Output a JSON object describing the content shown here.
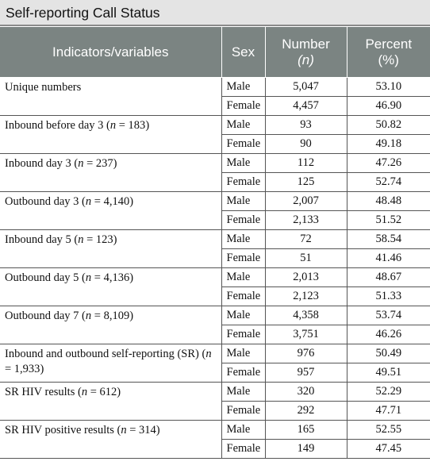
{
  "title": "Self-reporting Call Status",
  "headers": {
    "indicators": "Indicators/variables",
    "sex": "Sex",
    "number_line1": "Number",
    "number_line2": "(n)",
    "percent_line1": "Percent",
    "percent_line2": "(%)"
  },
  "groups": [
    {
      "label_pre": "Unique numbers",
      "n_var": "",
      "n_eq": "",
      "n_post": "",
      "rows": [
        {
          "sex": "Male",
          "number": "5,047",
          "percent": "53.10"
        },
        {
          "sex": "Female",
          "number": "4,457",
          "percent": "46.90"
        }
      ]
    },
    {
      "label_pre": "Inbound before day 3 (",
      "n_var": "n",
      "n_eq": " = 183",
      "n_post": ")",
      "rows": [
        {
          "sex": "Male",
          "number": "93",
          "percent": "50.82"
        },
        {
          "sex": "Female",
          "number": "90",
          "percent": "49.18"
        }
      ]
    },
    {
      "label_pre": "Inbound day 3 (",
      "n_var": "n",
      "n_eq": " = 237",
      "n_post": ")",
      "rows": [
        {
          "sex": "Male",
          "number": "112",
          "percent": "47.26"
        },
        {
          "sex": "Female",
          "number": "125",
          "percent": "52.74"
        }
      ]
    },
    {
      "label_pre": "Outbound day 3 (",
      "n_var": "n",
      "n_eq": " = 4,140",
      "n_post": ")",
      "rows": [
        {
          "sex": "Male",
          "number": "2,007",
          "percent": "48.48"
        },
        {
          "sex": "Female",
          "number": "2,133",
          "percent": "51.52"
        }
      ]
    },
    {
      "label_pre": "Inbound day 5 (",
      "n_var": "n",
      "n_eq": " = 123",
      "n_post": ")",
      "rows": [
        {
          "sex": "Male",
          "number": "72",
          "percent": "58.54"
        },
        {
          "sex": "Female",
          "number": "51",
          "percent": "41.46"
        }
      ]
    },
    {
      "label_pre": "Outbound day 5 (",
      "n_var": "n",
      "n_eq": " = 4,136",
      "n_post": ")",
      "rows": [
        {
          "sex": "Male",
          "number": "2,013",
          "percent": "48.67"
        },
        {
          "sex": "Female",
          "number": "2,123",
          "percent": "51.33"
        }
      ]
    },
    {
      "label_pre": "Outbound day 7 (",
      "n_var": "n",
      "n_eq": " = 8,109",
      "n_post": ")",
      "rows": [
        {
          "sex": "Male",
          "number": "4,358",
          "percent": "53.74"
        },
        {
          "sex": "Female",
          "number": "3,751",
          "percent": "46.26"
        }
      ]
    },
    {
      "label_pre": "Inbound and outbound self-reporting (SR) (",
      "n_var": "n",
      "n_eq": " = 1,933",
      "n_post": ")",
      "rows": [
        {
          "sex": "Male",
          "number": "976",
          "percent": "50.49"
        },
        {
          "sex": "Female",
          "number": "957",
          "percent": "49.51"
        }
      ]
    },
    {
      "label_pre": "SR HIV results (",
      "n_var": "n",
      "n_eq": " = 612",
      "n_post": ")",
      "rows": [
        {
          "sex": "Male",
          "number": "320",
          "percent": "52.29"
        },
        {
          "sex": "Female",
          "number": "292",
          "percent": "47.71"
        }
      ]
    },
    {
      "label_pre": "SR HIV positive results (",
      "n_var": "n",
      "n_eq": " = 314",
      "n_post": ")",
      "rows": [
        {
          "sex": "Male",
          "number": "165",
          "percent": "52.55"
        },
        {
          "sex": "Female",
          "number": "149",
          "percent": "47.45"
        }
      ]
    }
  ]
}
